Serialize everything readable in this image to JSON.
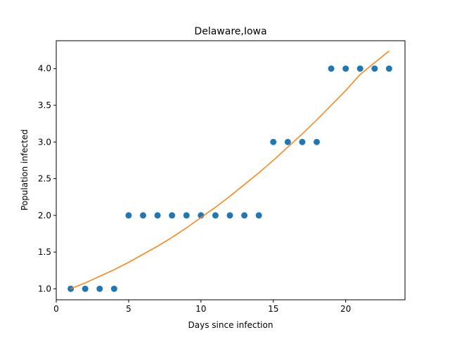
{
  "chart_data": {
    "type": "scatter",
    "title": "Delaware,Iowa",
    "xlabel": "Days since infection",
    "ylabel": "Population infected",
    "xlim": [
      0,
      24.1
    ],
    "ylim": [
      0.85,
      4.38
    ],
    "xticks": [
      0,
      5,
      10,
      15,
      20
    ],
    "xtick_labels": [
      "0",
      "5",
      "10",
      "15",
      "20"
    ],
    "yticks": [
      1.0,
      1.5,
      2.0,
      2.5,
      3.0,
      3.5,
      4.0
    ],
    "ytick_labels": [
      "1.0",
      "1.5",
      "2.0",
      "2.5",
      "3.0",
      "3.5",
      "4.0"
    ],
    "grid": false,
    "colors": {
      "points": "#1f77b4",
      "fit": "#ff7f0e"
    },
    "series": [
      {
        "type": "scatter",
        "x": [
          1,
          2,
          3,
          4,
          5,
          6,
          7,
          8,
          9,
          10,
          11,
          12,
          13,
          14,
          15,
          16,
          17,
          18,
          19,
          20,
          21,
          22,
          23
        ],
        "y": [
          1,
          1,
          1,
          1,
          2,
          2,
          2,
          2,
          2,
          2,
          2,
          2,
          2,
          2,
          3,
          3,
          3,
          3,
          4,
          4,
          4,
          4,
          4
        ]
      },
      {
        "type": "line",
        "x": [
          1,
          2,
          3,
          4,
          5,
          6,
          7,
          8,
          9,
          10,
          11,
          12,
          13,
          14,
          15,
          16,
          17,
          18,
          19,
          20,
          21,
          22,
          23
        ],
        "y": [
          1.0,
          1.08,
          1.17,
          1.26,
          1.36,
          1.47,
          1.58,
          1.7,
          1.83,
          1.97,
          2.11,
          2.26,
          2.42,
          2.58,
          2.75,
          2.93,
          3.11,
          3.3,
          3.5,
          3.7,
          3.92,
          4.08,
          4.24
        ]
      }
    ]
  }
}
